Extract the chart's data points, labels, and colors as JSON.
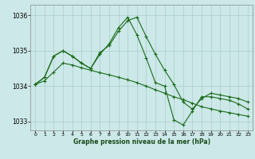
{
  "background_color": "#cce8e8",
  "grid_color": "#aacccc",
  "line_color": "#1a6b1a",
  "xlabel": "Graphe pression niveau de la mer (hPa)",
  "xlim": [
    -0.5,
    23.5
  ],
  "ylim": [
    1032.75,
    1036.3
  ],
  "yticks": [
    1033,
    1034,
    1035,
    1036
  ],
  "xticks": [
    0,
    1,
    2,
    3,
    4,
    5,
    6,
    7,
    8,
    9,
    10,
    11,
    12,
    13,
    14,
    15,
    16,
    17,
    18,
    19,
    20,
    21,
    22,
    23
  ],
  "series": [
    [
      1034.05,
      1034.25,
      1034.85,
      1035.0,
      1034.85,
      1034.65,
      1034.5,
      1034.95,
      1035.15,
      1035.55,
      1035.85,
      1035.95,
      1035.4,
      1034.9,
      1034.45,
      1034.05,
      1033.55,
      1033.35,
      1033.65,
      1033.8,
      1033.75,
      1033.7,
      1033.65,
      1033.55
    ],
    [
      1034.05,
      1034.25,
      1034.85,
      1035.0,
      1034.85,
      1034.65,
      1034.5,
      1034.9,
      1035.2,
      1035.65,
      1035.95,
      1035.45,
      1034.8,
      1034.1,
      1034.0,
      1033.05,
      1032.9,
      1033.3,
      1033.7,
      1033.7,
      1033.65,
      1033.6,
      1033.5,
      1033.35
    ],
    [
      1034.05,
      1034.15,
      1034.4,
      1034.65,
      1034.6,
      1034.52,
      1034.45,
      1034.38,
      1034.32,
      1034.25,
      1034.18,
      1034.1,
      1034.0,
      1033.9,
      1033.8,
      1033.7,
      1033.62,
      1033.52,
      1033.42,
      1033.36,
      1033.3,
      1033.25,
      1033.2,
      1033.15
    ]
  ]
}
